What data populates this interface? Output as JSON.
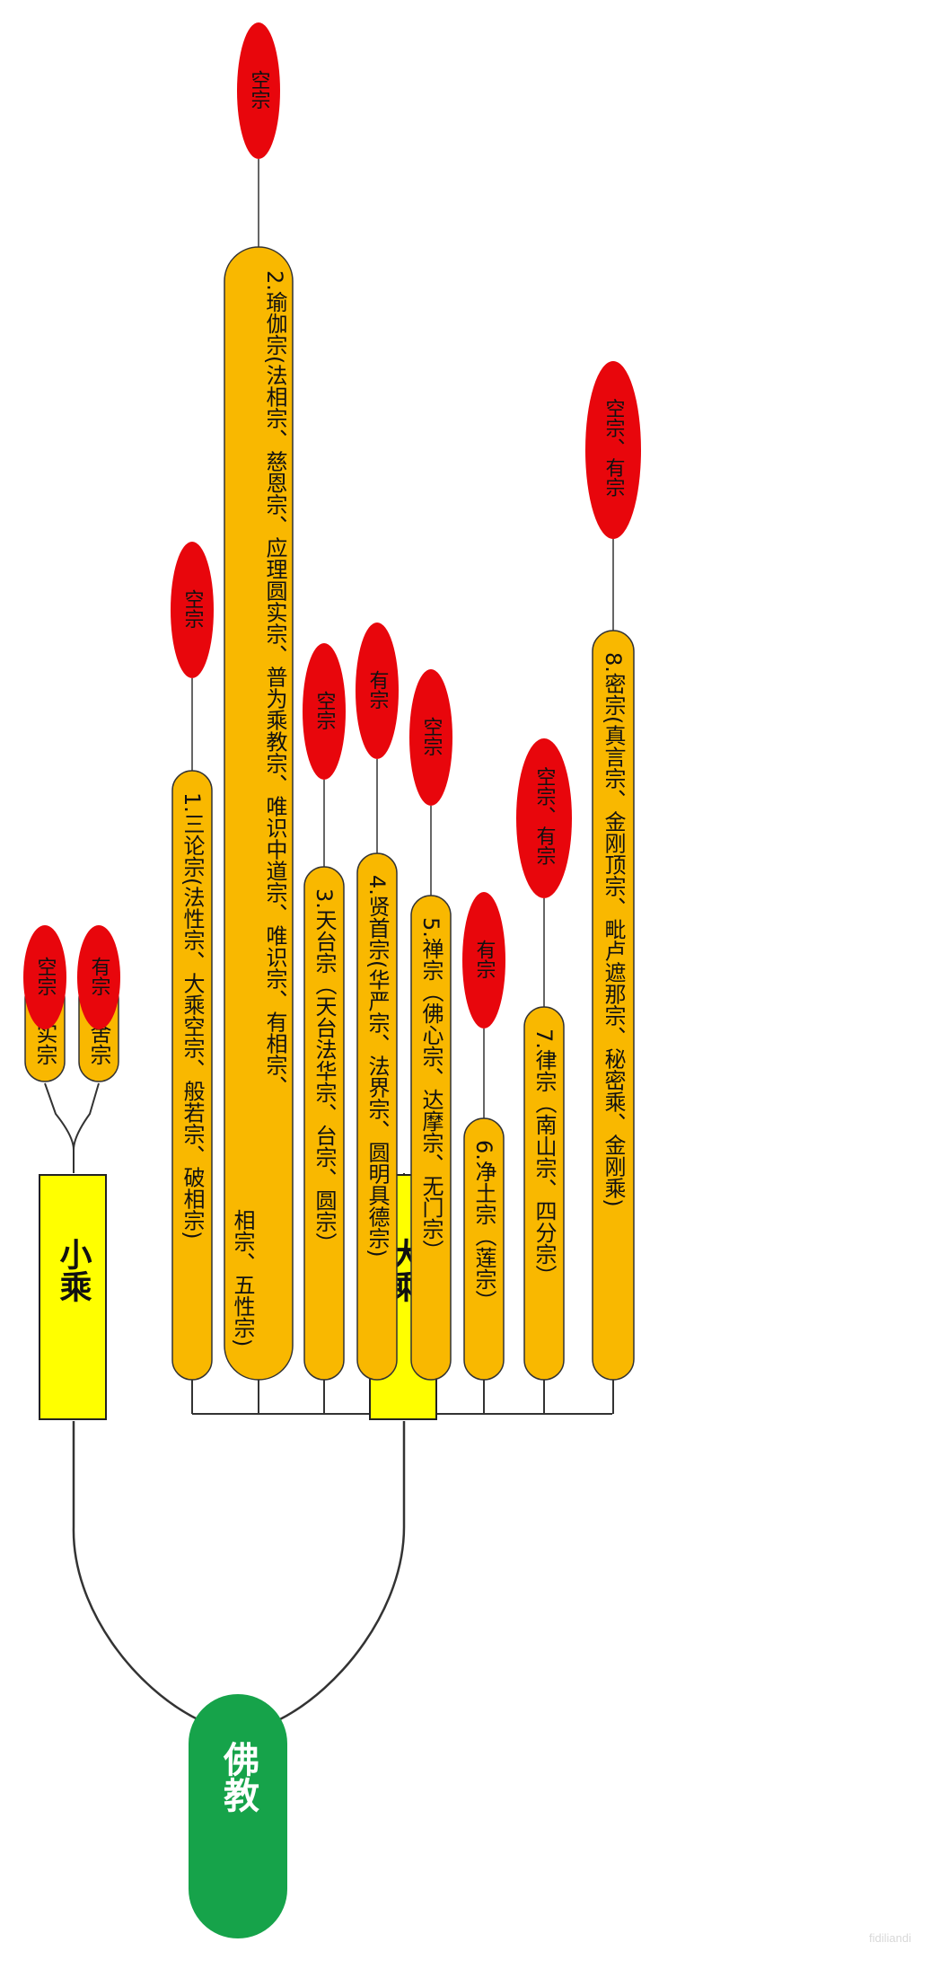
{
  "root": {
    "label": "佛教",
    "color": "#16a34a"
  },
  "colors": {
    "category": "#ffff00",
    "school": "#f9b800",
    "tag": "#e8060c",
    "line": "#333333"
  },
  "xiaocheng": {
    "label": "小乘",
    "schools": [
      {
        "label": "成实宗",
        "tags": [
          "空宗"
        ]
      },
      {
        "label": "俱舍宗",
        "tags": [
          "有宗"
        ]
      }
    ]
  },
  "dacheng": {
    "label": "大乘",
    "schools": [
      {
        "label": "1.三论宗(法性宗、大乘空宗、般若宗、破相宗)",
        "tags": [
          "空宗"
        ]
      },
      {
        "label": "2.瑜伽宗(法相宗、慈恩宗、应理圆实宗、普为乘教宗、唯识中道宗、唯识宗、有相宗、相宗、五性宗)",
        "tags": [
          "空宗"
        ]
      },
      {
        "label": "3.天台宗（天台法华宗、台宗、圆宗）",
        "tags": [
          "空宗"
        ]
      },
      {
        "label": "4.贤首宗(华严宗、法界宗、圆明具德宗)",
        "tags": [
          "有宗"
        ]
      },
      {
        "label": "5.禅宗（佛心宗、达摩宗、无门宗）",
        "tags": [
          "空宗"
        ]
      },
      {
        "label": "6.净土宗（莲宗）",
        "tags": [
          "有宗"
        ]
      },
      {
        "label": "7.律宗（南山宗、四分宗）",
        "tags": [
          "空宗、有宗"
        ]
      },
      {
        "label": "8.密宗(真言宗、金刚顶宗、毗卢遮那宗、秘密乘、金刚乘)",
        "tags": [
          "空宗、有宗"
        ]
      }
    ]
  },
  "watermark": "fidiliandi"
}
